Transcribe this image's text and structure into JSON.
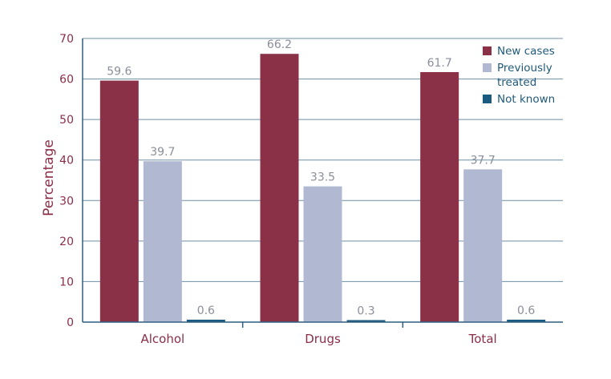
{
  "chart_data": {
    "type": "bar",
    "title": "",
    "xlabel": "",
    "ylabel": "Percentage",
    "ylim": [
      0,
      70
    ],
    "yticks": [
      0,
      10,
      20,
      30,
      40,
      50,
      60,
      70
    ],
    "grid": true,
    "legend_position": "top-right",
    "categories": [
      "Alcohol",
      "Drugs",
      "Total"
    ],
    "series": [
      {
        "name": "New cases",
        "color": "#8a3148",
        "values": [
          59.6,
          66.2,
          61.7
        ],
        "labels": [
          "59.6",
          "66.2",
          "61.7"
        ]
      },
      {
        "name": "Previously treated",
        "legend_lines": [
          "Previously",
          "treated"
        ],
        "color": "#b1b8d1",
        "values": [
          39.7,
          33.5,
          37.7
        ],
        "labels": [
          "39.7",
          "33.5",
          "37.7"
        ]
      },
      {
        "name": "Not known",
        "color": "#1a5a7e",
        "values": [
          0.6,
          0.3,
          0.6
        ],
        "labels": [
          "0.6",
          "0.3",
          "0.6"
        ]
      }
    ]
  }
}
